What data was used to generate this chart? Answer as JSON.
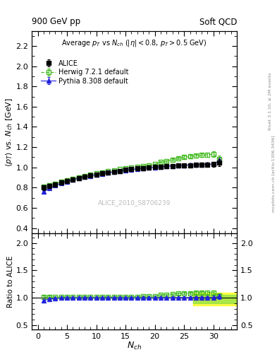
{
  "title_left": "900 GeV pp",
  "title_right": "Soft QCD",
  "subtitle": "Average $p_T$ vs $N_{ch}$ ($|\\eta| < 0.8$, $p_T > 0.5$ GeV)",
  "ylabel_main": "$\\langle p_T \\rangle$ vs. $N_{ch}$ [GeV]",
  "ylabel_ratio": "Ratio to ALICE",
  "xlabel": "$N_{ch}$",
  "watermark": "ALICE_2010_S8706239",
  "alice_x": [
    1,
    2,
    3,
    4,
    5,
    6,
    7,
    8,
    9,
    10,
    11,
    12,
    13,
    14,
    15,
    16,
    17,
    18,
    19,
    20,
    21,
    22,
    23,
    24,
    25,
    26,
    27,
    28,
    29,
    30,
    31
  ],
  "alice_y": [
    0.8,
    0.813,
    0.83,
    0.848,
    0.862,
    0.878,
    0.893,
    0.907,
    0.919,
    0.929,
    0.939,
    0.949,
    0.958,
    0.966,
    0.975,
    0.982,
    0.988,
    0.993,
    0.998,
    1.002,
    1.006,
    1.01,
    1.014,
    1.017,
    1.02,
    1.022,
    1.024,
    1.026,
    1.028,
    1.03,
    1.045
  ],
  "alice_yerr": [
    0.025,
    0.018,
    0.015,
    0.013,
    0.012,
    0.011,
    0.01,
    0.01,
    0.01,
    0.01,
    0.01,
    0.01,
    0.01,
    0.01,
    0.01,
    0.01,
    0.01,
    0.01,
    0.01,
    0.01,
    0.01,
    0.01,
    0.01,
    0.012,
    0.013,
    0.015,
    0.017,
    0.02,
    0.022,
    0.025,
    0.035
  ],
  "herwig_x": [
    1,
    2,
    3,
    4,
    5,
    6,
    7,
    8,
    9,
    10,
    11,
    12,
    13,
    14,
    15,
    16,
    17,
    18,
    19,
    20,
    21,
    22,
    23,
    24,
    25,
    26,
    27,
    28,
    29,
    30,
    31
  ],
  "herwig_y": [
    0.808,
    0.823,
    0.84,
    0.857,
    0.872,
    0.887,
    0.901,
    0.916,
    0.928,
    0.94,
    0.951,
    0.962,
    0.972,
    0.981,
    0.99,
    0.999,
    1.007,
    1.015,
    1.022,
    1.03,
    1.055,
    1.063,
    1.077,
    1.09,
    1.1,
    1.108,
    1.115,
    1.12,
    1.125,
    1.13,
    1.085
  ],
  "herwig_yerr": [
    0.008,
    0.007,
    0.006,
    0.005,
    0.005,
    0.005,
    0.004,
    0.004,
    0.004,
    0.004,
    0.004,
    0.004,
    0.004,
    0.004,
    0.004,
    0.004,
    0.004,
    0.004,
    0.004,
    0.005,
    0.007,
    0.008,
    0.009,
    0.011,
    0.013,
    0.015,
    0.017,
    0.019,
    0.022,
    0.025,
    0.028
  ],
  "pythia_x": [
    1,
    2,
    3,
    4,
    5,
    6,
    7,
    8,
    9,
    10,
    11,
    12,
    13,
    14,
    15,
    16,
    17,
    18,
    19,
    20,
    21,
    22,
    23,
    24,
    25,
    26,
    27,
    28,
    29,
    30,
    31
  ],
  "pythia_y": [
    0.758,
    0.793,
    0.82,
    0.843,
    0.86,
    0.876,
    0.891,
    0.905,
    0.917,
    0.927,
    0.937,
    0.947,
    0.956,
    0.964,
    0.972,
    0.979,
    0.985,
    0.991,
    0.996,
    1.001,
    1.006,
    1.01,
    1.014,
    1.018,
    1.022,
    1.024,
    1.026,
    1.028,
    1.03,
    1.032,
    1.068
  ],
  "pythia_yerr": [
    0.006,
    0.005,
    0.004,
    0.004,
    0.004,
    0.003,
    0.003,
    0.003,
    0.003,
    0.003,
    0.003,
    0.003,
    0.003,
    0.003,
    0.003,
    0.003,
    0.003,
    0.003,
    0.003,
    0.003,
    0.004,
    0.004,
    0.005,
    0.006,
    0.007,
    0.009,
    0.011,
    0.013,
    0.016,
    0.02,
    0.028
  ],
  "alice_color": "black",
  "herwig_color": "#44bb22",
  "pythia_color": "#2222dd",
  "ylim_main": [
    0.35,
    2.35
  ],
  "ylim_ratio": [
    0.42,
    2.18
  ],
  "xlim": [
    -1,
    34
  ],
  "yticks_main": [
    0.4,
    0.6,
    0.8,
    1.0,
    1.2,
    1.4,
    1.6,
    1.8,
    2.0,
    2.2
  ],
  "yticks_ratio": [
    0.5,
    1.0,
    1.5,
    2.0
  ],
  "xticks": [
    0,
    5,
    10,
    15,
    20,
    25,
    30
  ],
  "shade_x_start": 26.5,
  "shade_x_end": 34,
  "yellow_y_lo": 0.86,
  "yellow_y_hi": 1.09,
  "green_y_lo": 0.895,
  "green_y_hi": 1.055
}
